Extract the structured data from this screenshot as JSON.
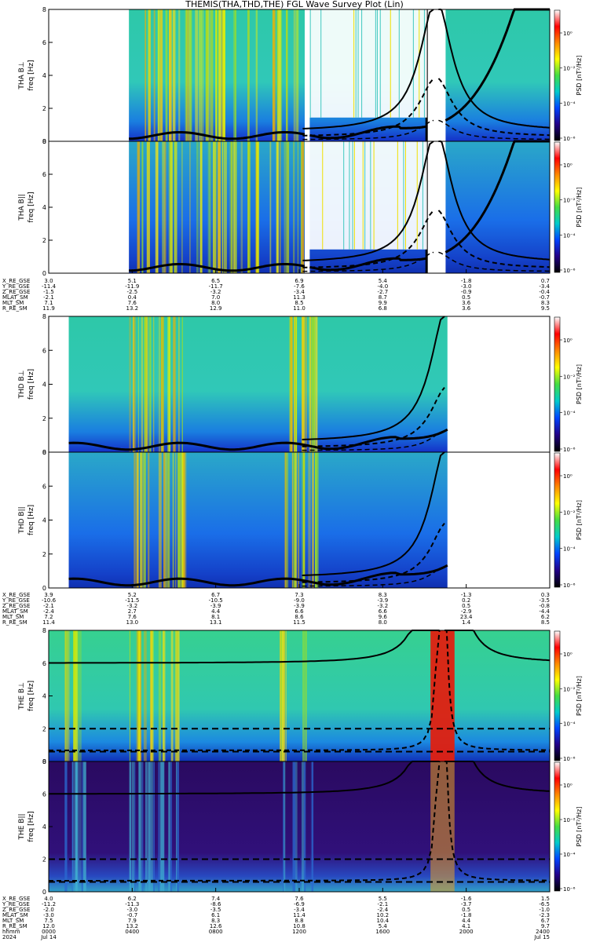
{
  "title": "THEMIS(THA,THD,THE) FGL Wave Survey Plot (Lin)",
  "colors": {
    "colorbar_stops": [
      "#ffffff",
      "#ff0000",
      "#ff8800",
      "#ffff00",
      "#44dd44",
      "#00cccc",
      "#0044ff",
      "#220088",
      "#000000"
    ]
  },
  "chart_data": [
    {
      "type": "heatmap",
      "probe": "THA",
      "panels": [
        {
          "ylabel": "THA B⊥",
          "ytitle": "freq [Hz]"
        },
        {
          "ylabel": "THA B||",
          "ytitle": "freq [Hz]"
        }
      ],
      "yticks": [
        "0",
        "2",
        "4",
        "6",
        "8"
      ],
      "ylim": [
        0,
        8
      ],
      "colorbar_label": "PSD [nT²/Hz]",
      "colorbar_ticks": [
        "10⁰",
        "10⁻²",
        "10⁻⁴",
        "10⁻⁶"
      ],
      "ephemeris": {
        "labels": [
          "X_RE_GSE",
          "Y_RE_GSE",
          "Z_RE_GSE",
          "MLAT_SM",
          "MLT_SM",
          "R_RE_SM"
        ],
        "rows": [
          [
            "3.0",
            "5.1",
            "6.5",
            "6.9",
            "5.4",
            "-1.8",
            "0.7"
          ],
          [
            "-11.4",
            "-11.9",
            "-11.7",
            "-7.6",
            "-4.0",
            "-3.0",
            "-3.4"
          ],
          [
            "-1.5",
            "-2.5",
            "-3.2",
            "-3.4",
            "-2.7",
            "-0.9",
            "-0.4"
          ],
          [
            "-2.1",
            "0.4",
            "7.0",
            "11.3",
            "8.7",
            "0.5",
            "-0.7"
          ],
          [
            "7.1",
            "7.6",
            "8.0",
            "8.5",
            "9.9",
            "3.6",
            "8.3"
          ],
          [
            "11.9",
            "13.2",
            "12.9",
            "11.0",
            "6.8",
            "3.6",
            "9.5"
          ]
        ]
      }
    },
    {
      "type": "heatmap",
      "probe": "THD",
      "panels": [
        {
          "ylabel": "THD B⊥",
          "ytitle": "freq [Hz]"
        },
        {
          "ylabel": "THD B||",
          "ytitle": "freq [Hz]"
        }
      ],
      "yticks": [
        "0",
        "2",
        "4",
        "6",
        "8"
      ],
      "ylim": [
        0,
        8
      ],
      "colorbar_label": "PSD [nT²/Hz]",
      "colorbar_ticks": [
        "10⁰",
        "10⁻²",
        "10⁻⁴",
        "10⁻⁶"
      ],
      "ephemeris": {
        "labels": [
          "X_RE_GSE",
          "Y_RE_GSE",
          "Z_RE_GSE",
          "MLAT_SM",
          "MLT_SM",
          "R_RE_SM"
        ],
        "rows": [
          [
            "3.9",
            "5.2",
            "6.7",
            "7.3",
            "8.3",
            "-1.3",
            "0.3"
          ],
          [
            "-10.6",
            "-11.5",
            "-10.5",
            "-9.0",
            "-3.9",
            "0.2",
            "-3.5"
          ],
          [
            "-2.1",
            "-3.2",
            "-3.9",
            "-3.9",
            "-3.2",
            "0.5",
            "-0.8"
          ],
          [
            "-2.4",
            "2.7",
            "4.4",
            "6.6",
            "6.6",
            "-2.9",
            "-4.4"
          ],
          [
            "7.2",
            "7.6",
            "8.1",
            "8.6",
            "9.6",
            "23.4",
            "6.2"
          ],
          [
            "11.4",
            "13.0",
            "13.1",
            "11.5",
            "8.0",
            "1.4",
            "8.5"
          ]
        ]
      }
    },
    {
      "type": "heatmap",
      "probe": "THE",
      "panels": [
        {
          "ylabel": "THE B⊥",
          "ytitle": "freq [Hz]"
        },
        {
          "ylabel": "THE B||",
          "ytitle": "freq [Hz]"
        }
      ],
      "yticks": [
        "0",
        "2",
        "4",
        "6",
        "8"
      ],
      "ylim": [
        0,
        8
      ],
      "colorbar_label": "PSD [nT²/Hz]",
      "colorbar_ticks": [
        "10⁰",
        "10⁻²",
        "10⁻⁴",
        "10⁻⁶"
      ],
      "ephemeris": {
        "labels": [
          "X_RE_GSE",
          "Y_RE_GSE",
          "Z_RE_GSE",
          "MLAT_SM",
          "MLT_SM",
          "R_RE_SM",
          "hhmm",
          "2024"
        ],
        "rows": [
          [
            "4.0",
            "6.2",
            "7.4",
            "7.6",
            "5.5",
            "-1.6",
            "1.5"
          ],
          [
            "-11.2",
            "-11.3",
            "-8.6",
            "-6.9",
            "-2.1",
            "-3.7",
            "-6.5"
          ],
          [
            "-2.0",
            "-3.0",
            "-3.5",
            "-3.4",
            "-2.4",
            "0.5",
            "-1.0"
          ],
          [
            "-3.0",
            "-0.7",
            "6.1",
            "11.4",
            "10.2",
            "-1.8",
            "-2.3"
          ],
          [
            "7.5",
            "7.9",
            "8.3",
            "8.8",
            "10.4",
            "4.4",
            "6.7"
          ],
          [
            "12.0",
            "13.2",
            "12.6",
            "10.8",
            "5.4",
            "4.1",
            "9.7"
          ],
          [
            "0000",
            "0400",
            "0800",
            "1200",
            "1600",
            "2000",
            "2400"
          ],
          [
            "Jul 14",
            "",
            "",
            "",
            "",
            "",
            "Jul 15"
          ]
        ]
      }
    }
  ]
}
